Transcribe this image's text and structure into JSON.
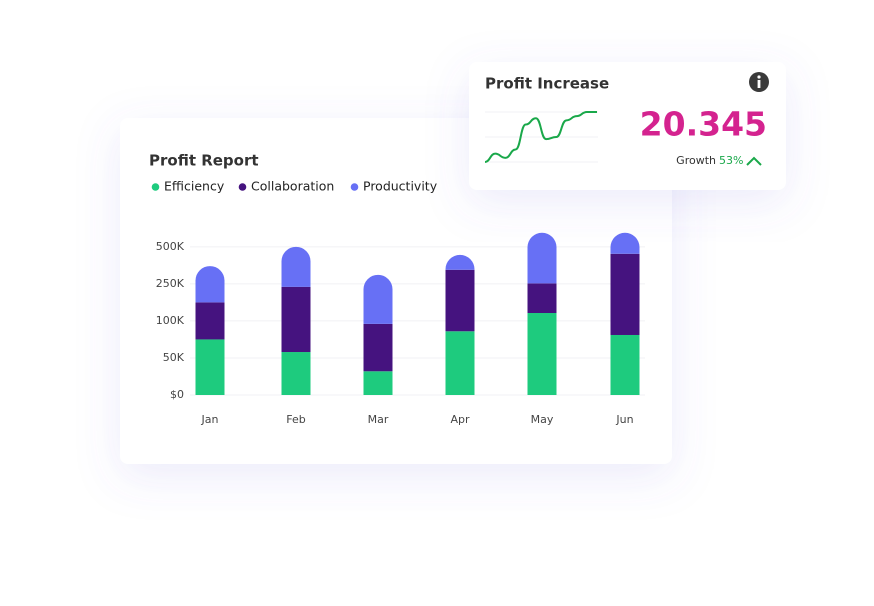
{
  "chart_data": [
    {
      "type": "stacked_bar",
      "title": "Profit Report",
      "categories": [
        "Jan",
        "Feb",
        "Mar",
        "Apr",
        "May",
        "Jun"
      ],
      "series": [
        {
          "name": "Efficiency",
          "color": "#1ecb7e",
          "values": [
            75000,
            58000,
            32000,
            86000,
            132000,
            81000
          ]
        },
        {
          "name": "Collaboration",
          "color": "#45137f",
          "values": [
            100000,
            180000,
            64000,
            259000,
            121000,
            372000
          ]
        },
        {
          "name": "Productivity",
          "color": "#6770f5",
          "values": [
            195000,
            262000,
            215000,
            101000,
            342000,
            142000
          ]
        }
      ],
      "ylim": [
        0,
        600000
      ],
      "yticks": [
        {
          "value": 0,
          "label": "$0"
        },
        {
          "value": 50000,
          "label": "50K"
        },
        {
          "value": 100000,
          "label": "100K"
        },
        {
          "value": 250000,
          "label": "250K"
        },
        {
          "value": 500000,
          "label": "500K"
        }
      ],
      "grid": true
    },
    {
      "type": "line",
      "title": "Profit Increase",
      "color": "#1aa84a",
      "values": [
        0,
        8,
        4,
        12,
        36,
        42,
        22,
        24,
        40,
        44,
        48,
        48
      ],
      "value": "20.345",
      "growth_label": "Growth",
      "growth": "53%"
    }
  ]
}
